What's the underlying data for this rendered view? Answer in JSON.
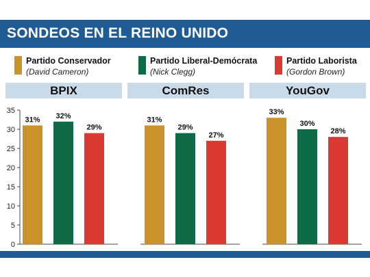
{
  "header": {
    "title": "SONDEOS EN EL REINO UNIDO"
  },
  "legend": [
    {
      "name": "Partido Conservador",
      "leader": "(David Cameron)",
      "color": "#c9922a"
    },
    {
      "name": "Partido Liberal-Demócrata",
      "leader": "(Nick Clegg)",
      "color": "#0e6b45"
    },
    {
      "name": "Partido Laborista",
      "leader": "(Gordon Brown)",
      "color": "#db3a33"
    }
  ],
  "chart_data": {
    "type": "bar",
    "panels": [
      "BPIX",
      "ComRes",
      "YouGov"
    ],
    "series": [
      {
        "name": "Partido Conservador",
        "values": [
          31,
          31,
          33
        ],
        "labels": [
          "31%",
          "31%",
          "33%"
        ]
      },
      {
        "name": "Partido Liberal-Demócrata",
        "values": [
          32,
          29,
          30
        ],
        "labels": [
          "32%",
          "29%",
          "30%"
        ]
      },
      {
        "name": "Partido Laborista",
        "values": [
          29,
          27,
          28
        ],
        "labels": [
          "29%",
          "27%",
          "28%"
        ]
      }
    ],
    "ylim": [
      0,
      35
    ],
    "yticks": [
      "0",
      "5",
      "10",
      "15",
      "20",
      "25",
      "30",
      "35"
    ],
    "grid": false
  }
}
